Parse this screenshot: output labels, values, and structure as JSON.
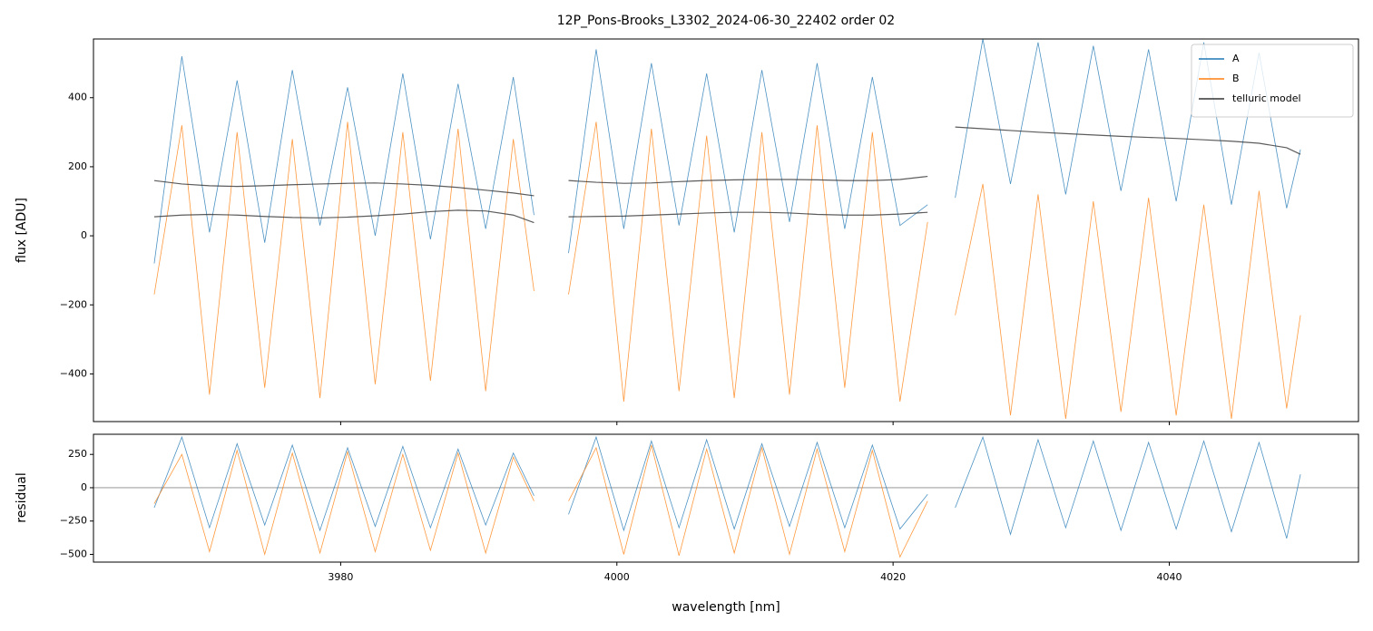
{
  "chart_data": [
    {
      "type": "line",
      "title": "12P_Pons-Brooks_L3302_2024-06-30_22402  order 02",
      "ylabel": "flux [ADU]",
      "x": [
        3966.5,
        3968.5,
        3970.5,
        3972.5,
        3974.5,
        3976.5,
        3978.5,
        3980.5,
        3982.5,
        3984.5,
        3986.5,
        3988.5,
        3990.5,
        3992.5,
        3994,
        3995,
        3996.5,
        3998.5,
        4000.5,
        4002.5,
        4004.5,
        4006.5,
        4008.5,
        4010.5,
        4012.5,
        4014.5,
        4016.5,
        4018.5,
        4020.5,
        4022.5,
        4023.5,
        4024.5,
        4026.5,
        4028.5,
        4030.5,
        4032.5,
        4034.5,
        4036.5,
        4038.5,
        4040.5,
        4042.5,
        4044.5,
        4046.5,
        4048.5,
        4049.5
      ],
      "series": [
        {
          "name": "A",
          "color": "#1f77b4",
          "values": [
            -80,
            520,
            10,
            450,
            -20,
            480,
            30,
            430,
            0,
            470,
            -10,
            440,
            20,
            460,
            60,
            null,
            -50,
            540,
            20,
            500,
            30,
            470,
            10,
            480,
            40,
            500,
            20,
            460,
            30,
            90,
            null,
            110,
            570,
            150,
            560,
            120,
            550,
            130,
            540,
            100,
            560,
            90,
            530,
            80,
            250
          ]
        },
        {
          "name": "B",
          "color": "#ff7f0e",
          "values": [
            -170,
            320,
            -460,
            300,
            -440,
            280,
            -470,
            330,
            -430,
            300,
            -420,
            310,
            -450,
            280,
            -160,
            null,
            -170,
            330,
            -480,
            310,
            -450,
            290,
            -470,
            300,
            -460,
            320,
            -440,
            300,
            -480,
            40,
            null,
            -230,
            150,
            -520,
            120,
            -530,
            100,
            -510,
            110,
            -520,
            90,
            -530,
            130,
            -500,
            -230
          ]
        },
        {
          "name": "telluric model",
          "color": "#333333",
          "values": [
            160,
            150,
            145,
            143,
            145,
            148,
            150,
            152,
            153,
            150,
            146,
            140,
            132,
            124,
            116,
            null,
            160,
            155,
            152,
            153,
            157,
            160,
            162,
            163,
            163,
            162,
            160,
            160,
            163,
            172,
            null,
            315,
            310,
            305,
            300,
            296,
            292,
            288,
            285,
            282,
            278,
            274,
            268,
            255,
            236
          ]
        },
        {
          "color": "#333333",
          "values": [
            55,
            60,
            62,
            60,
            56,
            53,
            52,
            54,
            58,
            63,
            70,
            74,
            72,
            60,
            38,
            null,
            55,
            56,
            57,
            60,
            63,
            66,
            68,
            68,
            66,
            62,
            60,
            60,
            63,
            68,
            null,
            null,
            null,
            null,
            null,
            null,
            null,
            null,
            null,
            null,
            null,
            null,
            null,
            null,
            null
          ]
        }
      ],
      "xlim": [
        3962.1,
        4053.7
      ],
      "xticks": [
        3980,
        4000,
        4020,
        4040
      ],
      "ylim": [
        -538,
        570
      ],
      "yticks": [
        400,
        200,
        0,
        {
          "value": -200,
          "label": "−200"
        },
        {
          "value": -400,
          "label": "−400"
        }
      ],
      "legend": "upper right"
    },
    {
      "type": "line",
      "ylabel": "residual",
      "xlabel": "wavelength [nm]",
      "x": [
        3966.5,
        3968.5,
        3970.5,
        3972.5,
        3974.5,
        3976.5,
        3978.5,
        3980.5,
        3982.5,
        3984.5,
        3986.5,
        3988.5,
        3990.5,
        3992.5,
        3994,
        3995,
        3996.5,
        3998.5,
        4000.5,
        4002.5,
        4004.5,
        4006.5,
        4008.5,
        4010.5,
        4012.5,
        4014.5,
        4016.5,
        4018.5,
        4020.5,
        4022.5,
        4023.5,
        4024.5,
        4026.5,
        4028.5,
        4030.5,
        4032.5,
        4034.5,
        4036.5,
        4038.5,
        4040.5,
        4042.5,
        4044.5,
        4046.5,
        4048.5,
        4049.5
      ],
      "series": [
        {
          "color": "#1f77b4",
          "values": [
            -150,
            380,
            -300,
            330,
            -280,
            320,
            -320,
            300,
            -290,
            310,
            -300,
            290,
            -280,
            260,
            -60,
            null,
            -200,
            380,
            -320,
            350,
            -300,
            360,
            -310,
            330,
            -290,
            340,
            -300,
            320,
            -310,
            -50,
            null,
            -150,
            380,
            -350,
            360,
            -300,
            350,
            -320,
            340,
            -310,
            350,
            -330,
            340,
            -380,
            100
          ]
        },
        {
          "color": "#ff7f0e",
          "values": [
            -120,
            250,
            -480,
            280,
            -500,
            260,
            -490,
            270,
            -480,
            250,
            -470,
            260,
            -490,
            230,
            -100,
            null,
            -100,
            300,
            -500,
            320,
            -510,
            290,
            -490,
            300,
            -500,
            290,
            -480,
            280,
            -520,
            -100,
            null,
            null,
            null,
            null,
            null,
            null,
            null,
            null,
            null,
            null,
            null,
            null,
            null,
            null,
            null
          ]
        }
      ],
      "xlim": [
        3962.1,
        4053.7
      ],
      "xticks": [
        3980,
        4000,
        4020,
        4040
      ],
      "ylim": [
        -558,
        401
      ],
      "yticks": [
        250,
        0,
        {
          "value": -250,
          "label": "−250"
        },
        {
          "value": -500,
          "label": "−500"
        }
      ],
      "hline": 0
    }
  ]
}
